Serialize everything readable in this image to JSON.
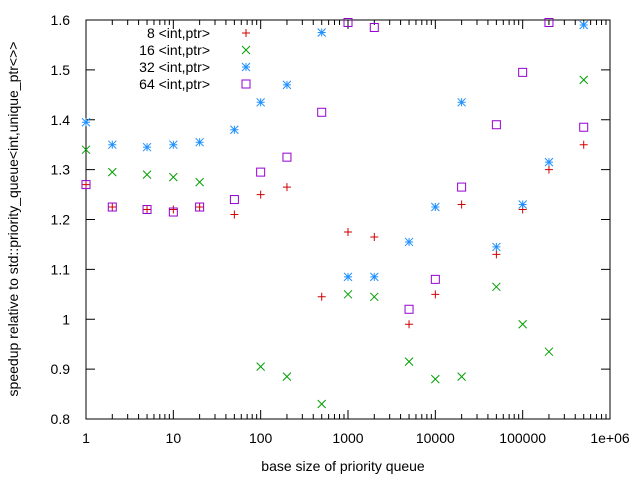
{
  "chart_data": {
    "type": "scatter",
    "xlabel": "base size of priority queue",
    "ylabel": "speedup relative to std::priority_queue<int,unique_ptr<>>",
    "x_scale": "log",
    "xlim": [
      1,
      1000000
    ],
    "ylim": [
      0.8,
      1.6
    ],
    "x_ticks": [
      1,
      10,
      100,
      1000,
      10000,
      100000,
      1000000
    ],
    "x_tick_labels": [
      "1",
      "10",
      "100",
      "1000",
      "10000",
      "100000",
      "1e+06"
    ],
    "y_ticks": [
      0.8,
      0.9,
      1.0,
      1.1,
      1.2,
      1.3,
      1.4,
      1.5,
      1.6
    ],
    "y_tick_labels": [
      "0.8",
      "0.9",
      "1",
      "1.1",
      "1.2",
      "1.3",
      "1.4",
      "1.5",
      "1.6"
    ],
    "grid": false,
    "legend_position": "top-left",
    "series": [
      {
        "name": "8 <int,ptr>",
        "marker": "plus",
        "color": "#d00000",
        "x": [
          1,
          2,
          5,
          10,
          20,
          50,
          100,
          200,
          500,
          1000,
          2000,
          5000,
          10000,
          20000,
          50000,
          100000,
          200000,
          500000
        ],
        "y": [
          1.27,
          1.225,
          1.22,
          1.22,
          1.225,
          1.21,
          1.25,
          1.265,
          1.045,
          1.175,
          1.165,
          0.99,
          1.05,
          1.23,
          1.13,
          1.22,
          1.3,
          1.35
        ]
      },
      {
        "name": "16 <int,ptr>",
        "marker": "cross",
        "color": "#00a000",
        "x": [
          1,
          2,
          5,
          10,
          20,
          100,
          200,
          500,
          1000,
          2000,
          5000,
          10000,
          20000,
          50000,
          100000,
          200000,
          500000
        ],
        "y": [
          1.34,
          1.295,
          1.29,
          1.285,
          1.275,
          0.905,
          0.885,
          0.83,
          1.05,
          1.045,
          0.915,
          0.88,
          0.885,
          1.065,
          0.99,
          0.935,
          1.48
        ]
      },
      {
        "name": "32 <int,ptr>",
        "marker": "star",
        "color": "#1e90ff",
        "x": [
          1,
          2,
          5,
          10,
          20,
          50,
          100,
          200,
          500,
          1000,
          2000,
          5000,
          10000,
          20000,
          50000,
          100000,
          200000,
          500000
        ],
        "y": [
          1.395,
          1.35,
          1.345,
          1.35,
          1.355,
          1.38,
          1.435,
          1.47,
          1.575,
          1.085,
          1.085,
          1.155,
          1.225,
          1.435,
          1.145,
          1.23,
          1.315,
          1.59
        ]
      },
      {
        "name": "64 <int,ptr>",
        "marker": "square",
        "color": "#9400d3",
        "x": [
          1,
          2,
          5,
          10,
          20,
          50,
          100,
          200,
          500,
          1000,
          2000,
          5000,
          10000,
          20000,
          50000,
          100000,
          200000,
          500000
        ],
        "y": [
          1.27,
          1.225,
          1.22,
          1.215,
          1.225,
          1.24,
          1.295,
          1.325,
          1.415,
          1.595,
          1.585,
          1.02,
          1.08,
          1.265,
          1.39,
          1.495,
          1.595,
          1.385
        ]
      }
    ]
  }
}
